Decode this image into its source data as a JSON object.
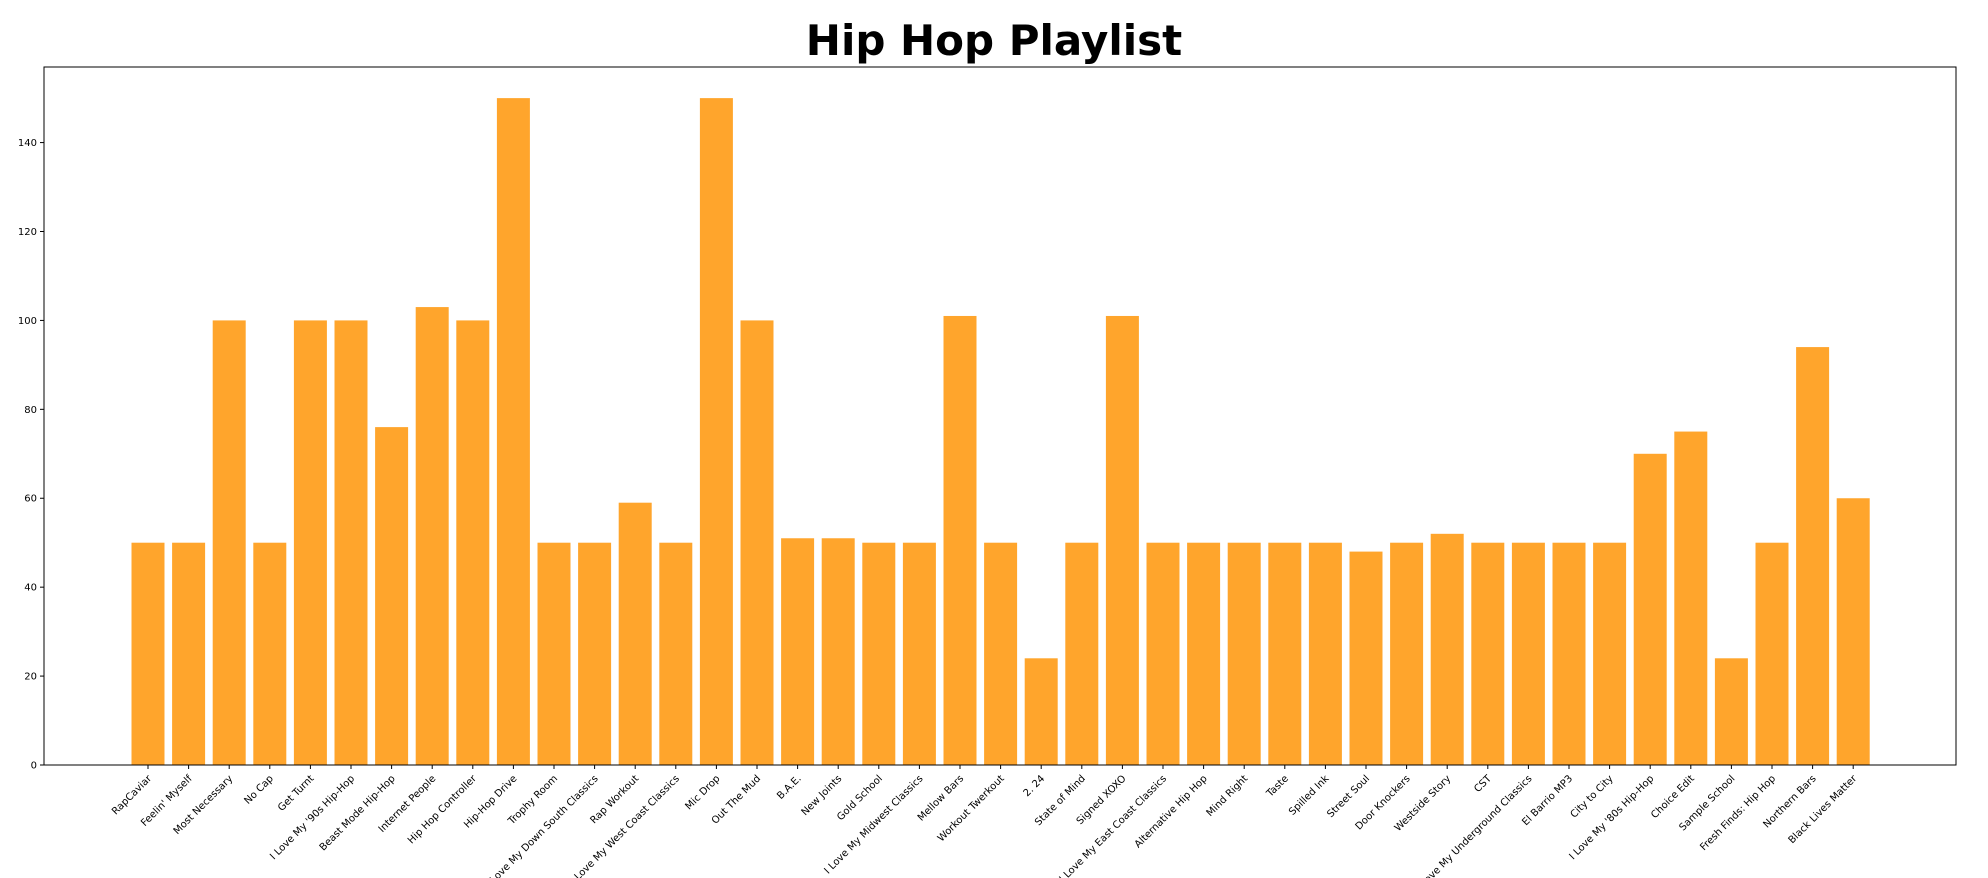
{
  "chart_data": {
    "type": "bar",
    "title": "Hip Hop Playlist",
    "xlabel": "",
    "ylabel": "",
    "ylim": [
      0,
      157
    ],
    "yticks": [
      0,
      20,
      40,
      60,
      80,
      100,
      120,
      140
    ],
    "bar_color": "#FFA52C",
    "grid": false,
    "categories": [
      "RapCaviar",
      "Feelin' Myself",
      "Most Necessary",
      "No Cap",
      "Get Turnt",
      "I Love My '90s Hip-Hop",
      "Beast Mode Hip-Hop",
      "Internet People",
      "Hip Hop Controller",
      "Hip-Hop Drive",
      "Trophy Room",
      "I Love My Down South Classics",
      "Rap Workout",
      "I Love My West Coast Classics",
      "Mic Drop",
      "Out The Mud",
      "B.A.E.",
      "New Joints",
      "Gold School",
      "I Love My Midwest Classics",
      "Mellow Bars",
      "Workout Twerkout",
      "2. 24",
      "State of Mind",
      "Signed XOXO",
      "I Love My East Coast Classics",
      "Alternative Hip Hop",
      "Mind Right",
      "Taste",
      "Spilled Ink",
      "Street Soul",
      "Door Knockers",
      "Westside Story",
      "CST",
      "I Love My Underground Classics",
      "El Barrio MP3",
      "City to City",
      "I Love My '80s Hip-Hop",
      "Choice Edit",
      "Sample School",
      "Fresh Finds: Hip Hop",
      "Northern Bars",
      "Black Lives Matter"
    ],
    "values": [
      50,
      50,
      100,
      50,
      100,
      100,
      76,
      103,
      100,
      150,
      50,
      50,
      59,
      50,
      150,
      100,
      51,
      51,
      50,
      50,
      101,
      50,
      24,
      50,
      101,
      50,
      50,
      50,
      50,
      50,
      48,
      50,
      52,
      50,
      50,
      50,
      50,
      70,
      75,
      24,
      50,
      94,
      60
    ]
  }
}
